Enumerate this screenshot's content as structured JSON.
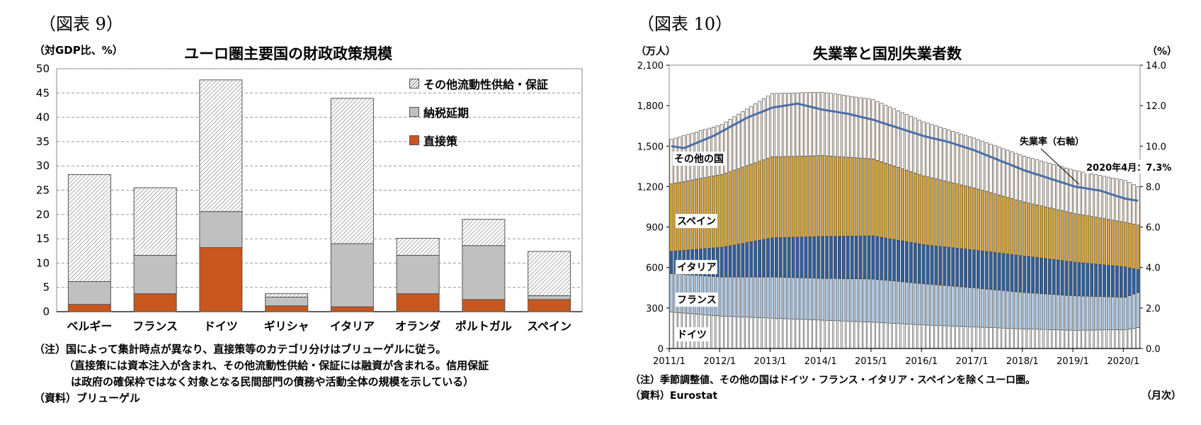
{
  "left": {
    "figure_no": "（図表 9）",
    "unit_label": "（対GDP比、%）",
    "notes": [
      "（注）国によって集計時点が異なり、直接策等のカテゴリ分けはブリューゲルに従う。",
      "（直接策には資本注入が含まれ、その他流動性供給・保証には融資が含まれる。信用保証",
      "は政府の確保枠ではなく対象となる民間部門の債務や活動全体の規模を示している）",
      "（資料）ブリューゲル"
    ],
    "chart_data": {
      "type": "bar",
      "stacked": true,
      "title": "ユーロ圏主要国の財政政策規模",
      "categories": [
        "ベルギー",
        "フランス",
        "ドイツ",
        "ギリシャ",
        "イタリア",
        "オランダ",
        "ポルトガル",
        "スペイン"
      ],
      "series": [
        {
          "name": "直接策",
          "color": "#c8571d",
          "values": [
            1.5,
            3.7,
            13.2,
            1.2,
            1.0,
            3.7,
            2.5,
            2.5
          ]
        },
        {
          "name": "納税延期",
          "color": "#c0c0c0",
          "values": [
            4.7,
            7.9,
            7.4,
            1.8,
            13.0,
            7.9,
            11.1,
            0.8
          ]
        },
        {
          "name": "その他流動性供給・保証",
          "color": "hatched",
          "values": [
            22.0,
            13.9,
            27.1,
            0.7,
            29.9,
            3.5,
            5.4,
            9.1
          ]
        }
      ],
      "legend_order": [
        "その他流動性供給・保証",
        "納税延期",
        "直接策"
      ],
      "legend_position": "top-right",
      "ylim": [
        0,
        50
      ],
      "yticks": [
        0,
        5,
        10,
        15,
        20,
        25,
        30,
        35,
        40,
        45,
        50
      ],
      "grid": true
    }
  },
  "right": {
    "figure_no": "（図表 10）",
    "unit_left": "（万人）",
    "unit_right": "（%）",
    "notes": [
      "（注）季節調整値、その他の国はドイツ・フランス・イタリア・スペインを除くユーロ圏。",
      "（資料）Eurostat"
    ],
    "month_label": "（月次）",
    "chart_data": {
      "type": "bar",
      "stacked": true,
      "title": "失業率と国別失業者数",
      "x_start": "2011/1",
      "x_end": "2020/4",
      "xticks": [
        "2011/1",
        "2012/1",
        "2013/1",
        "2014/1",
        "2015/1",
        "2016/1",
        "2017/1",
        "2018/1",
        "2019/1",
        "2020/1"
      ],
      "ylim_left": [
        0,
        2100
      ],
      "yticks_left": [
        "0",
        "300",
        "600",
        "900",
        "1,200",
        "1,500",
        "1,800",
        "2,100"
      ],
      "ylim_right": [
        0,
        14
      ],
      "yticks_right": [
        "0.0",
        "2.0",
        "4.0",
        "6.0",
        "8.0",
        "10.0",
        "12.0",
        "14.0"
      ],
      "series_labels": [
        "その他の国",
        "スペイン",
        "イタリア",
        "フランス",
        "ドイツ"
      ],
      "series": [
        {
          "name": "ドイツ",
          "color": "#ffffff",
          "anchors": [
            [
              0,
              270
            ],
            [
              12,
              240
            ],
            [
              24,
              225
            ],
            [
              36,
              210
            ],
            [
              48,
              195
            ],
            [
              60,
              175
            ],
            [
              72,
              160
            ],
            [
              84,
              145
            ],
            [
              96,
              135
            ],
            [
              108,
              140
            ],
            [
              111,
              155
            ]
          ]
        },
        {
          "name": "フランス",
          "color": "#b4cde6",
          "anchors": [
            [
              0,
              285
            ],
            [
              12,
              290
            ],
            [
              24,
              305
            ],
            [
              36,
              310
            ],
            [
              48,
              320
            ],
            [
              60,
              305
            ],
            [
              72,
              290
            ],
            [
              84,
              270
            ],
            [
              96,
              255
            ],
            [
              108,
              240
            ],
            [
              111,
              260
            ]
          ]
        },
        {
          "name": "イタリア",
          "color": "#2f5f9e",
          "anchors": [
            [
              0,
              165
            ],
            [
              12,
              220
            ],
            [
              24,
              290
            ],
            [
              36,
              310
            ],
            [
              48,
              320
            ],
            [
              60,
              290
            ],
            [
              72,
              280
            ],
            [
              84,
              270
            ],
            [
              96,
              250
            ],
            [
              108,
              225
            ],
            [
              111,
              170
            ]
          ]
        },
        {
          "name": "スペイン",
          "color": "#d8a332",
          "anchors": [
            [
              0,
              500
            ],
            [
              12,
              540
            ],
            [
              24,
              600
            ],
            [
              36,
              600
            ],
            [
              48,
              570
            ],
            [
              60,
              510
            ],
            [
              72,
              460
            ],
            [
              84,
              400
            ],
            [
              96,
              360
            ],
            [
              108,
              330
            ],
            [
              111,
              330
            ]
          ]
        },
        {
          "name": "その他の国",
          "color": "#fdf5ee",
          "anchors": [
            [
              0,
              330
            ],
            [
              12,
              370
            ],
            [
              24,
              470
            ],
            [
              36,
              470
            ],
            [
              48,
              440
            ],
            [
              60,
              400
            ],
            [
              72,
              370
            ],
            [
              84,
              340
            ],
            [
              96,
              320
            ],
            [
              108,
              310
            ],
            [
              111,
              285
            ]
          ]
        }
      ],
      "line": {
        "name": "失業率（右軸）",
        "color": "#4a6ea8",
        "anchors": [
          [
            0,
            10.0
          ],
          [
            3,
            9.9
          ],
          [
            10,
            10.5
          ],
          [
            18,
            11.4
          ],
          [
            24,
            11.9
          ],
          [
            30,
            12.1
          ],
          [
            36,
            11.8
          ],
          [
            42,
            11.6
          ],
          [
            48,
            11.3
          ],
          [
            54,
            10.9
          ],
          [
            60,
            10.5
          ],
          [
            66,
            10.2
          ],
          [
            72,
            9.8
          ],
          [
            78,
            9.3
          ],
          [
            84,
            8.8
          ],
          [
            90,
            8.4
          ],
          [
            96,
            8.0
          ],
          [
            102,
            7.8
          ],
          [
            108,
            7.4
          ],
          [
            111,
            7.3
          ]
        ]
      },
      "annotation_line": "失業率（右軸）",
      "annotation_latest": "2020年4月：7.3%"
    }
  }
}
